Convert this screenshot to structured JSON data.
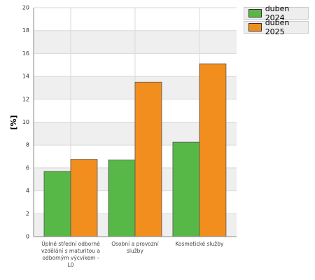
{
  "chart_data": {
    "type": "bar",
    "y_label": "[%]",
    "categories": [
      "Úplné střední odborné vzdělání s maturitou a odborným výcvikem - L0",
      "Osobní a provozní služby",
      "Kosmetické služby"
    ],
    "series": [
      {
        "name": "duben 2024",
        "color": "#58b847",
        "values": [
          5.7,
          6.7,
          8.25
        ]
      },
      {
        "name": "duben 2025",
        "color": "#f28e1e",
        "values": [
          6.75,
          13.5,
          15.1
        ]
      }
    ],
    "ylim": [
      0,
      20
    ],
    "yticks": [
      0,
      2,
      4,
      6,
      8,
      10,
      12,
      14,
      16,
      18,
      20
    ],
    "grid": true,
    "legend": "top-right"
  }
}
